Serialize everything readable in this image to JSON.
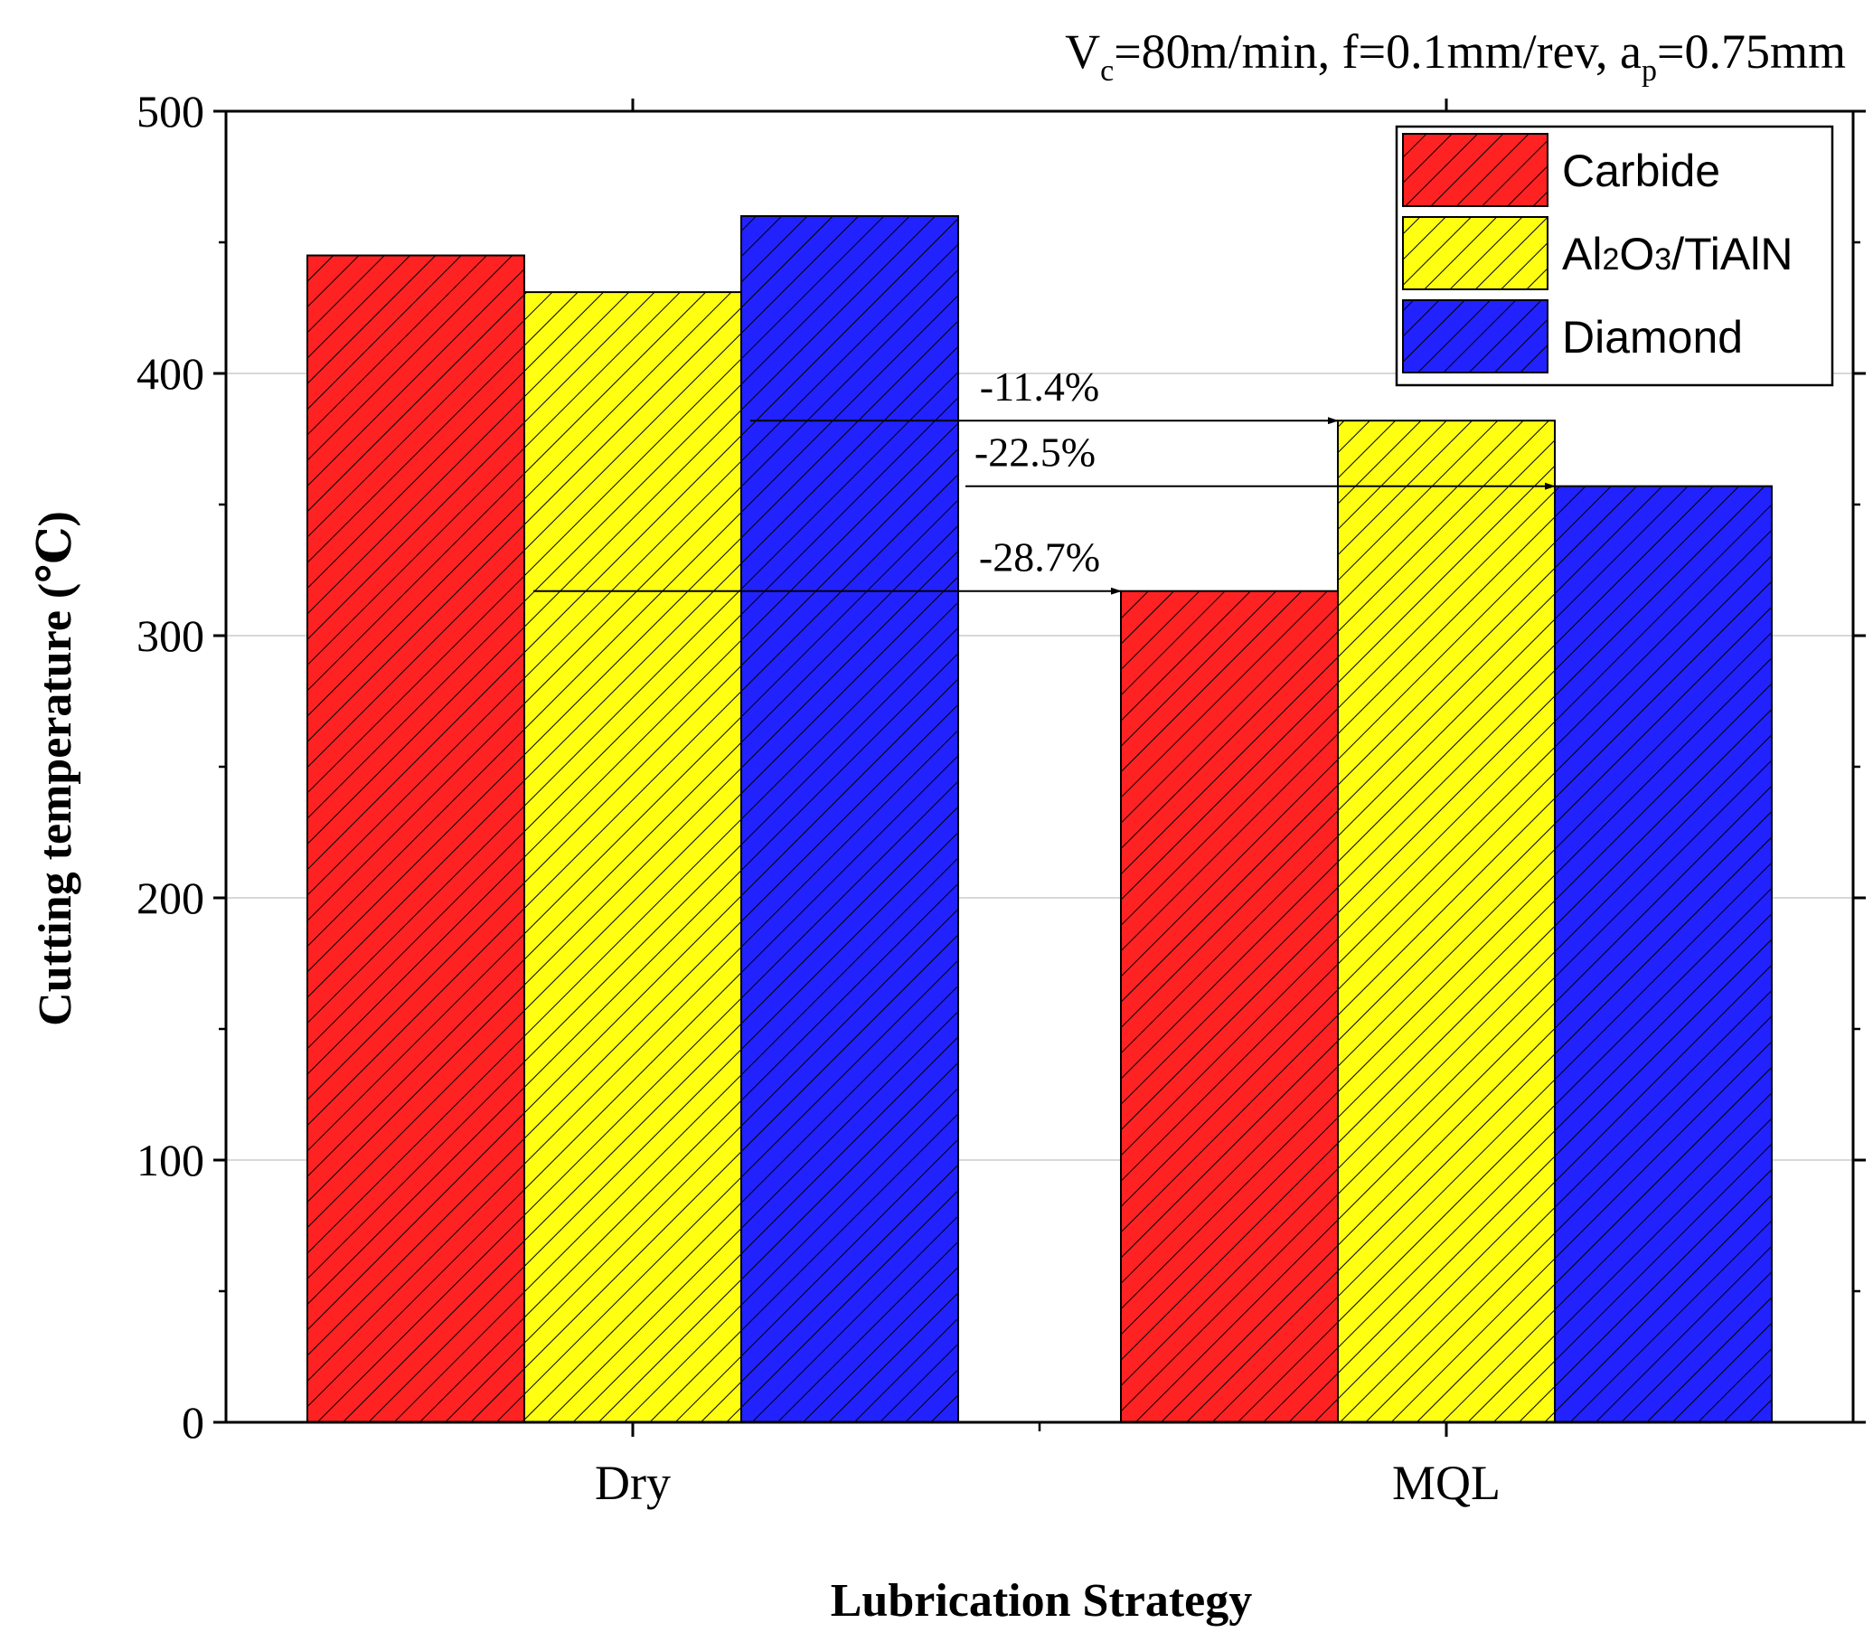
{
  "chart_data": {
    "type": "bar",
    "title": "",
    "conditions": {
      "prefix": "V",
      "prefix_sub": "c",
      "middle": "=80m/min, f=0.1mm/rev, a",
      "middle_sub": "p",
      "suffix": "=0.75mm"
    },
    "xlabel": "Lubrication Strategy",
    "ylabel": "Cutting temperature (℃)",
    "categories": [
      "Dry",
      "MQL"
    ],
    "ylim": [
      0,
      500
    ],
    "yticks": [
      0,
      100,
      200,
      300,
      400,
      500
    ],
    "grid": true,
    "legend_position": "top-right",
    "series": [
      {
        "name": "Carbide",
        "name_parts": [
          "Carbide"
        ],
        "color": "#ff2222",
        "values": [
          445,
          317
        ]
      },
      {
        "name": "Al2O3/TiAlN",
        "name_parts": [
          "Al",
          "2",
          "O",
          "3",
          "/TiAlN"
        ],
        "color": "#ffff11",
        "values": [
          431,
          382
        ]
      },
      {
        "name": "Diamond",
        "name_parts": [
          "Diamond"
        ],
        "color": "#2222ff",
        "values": [
          460,
          357
        ]
      }
    ],
    "annotations": [
      {
        "label": "-28.7%",
        "series": 0
      },
      {
        "label": "-11.4%",
        "series": 1
      },
      {
        "label": "-22.5%",
        "series": 2
      }
    ]
  }
}
